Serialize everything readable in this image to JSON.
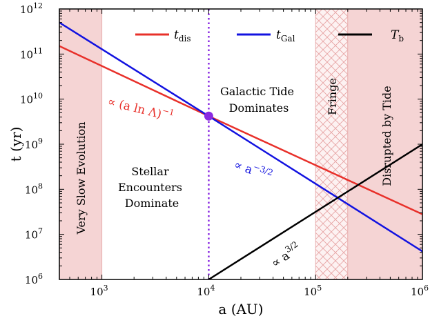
{
  "chart_data": {
    "type": "line",
    "title": "",
    "xlabel": "a (AU)",
    "ylabel": "t (yr)",
    "x_scale": "log",
    "y_scale": "log",
    "xlim": [
      400,
      1000000
    ],
    "ylim": [
      1000000,
      1000000000000
    ],
    "grid": false,
    "legend_position": "top",
    "x_ticks": [
      {
        "base": "10",
        "exp": "3",
        "value": 1000
      },
      {
        "base": "10",
        "exp": "4",
        "value": 10000
      },
      {
        "base": "10",
        "exp": "5",
        "value": 100000
      },
      {
        "base": "10",
        "exp": "6",
        "value": 1000000
      }
    ],
    "y_ticks": [
      {
        "base": "10",
        "exp": "6",
        "value": 1000000
      },
      {
        "base": "10",
        "exp": "7",
        "value": 10000000
      },
      {
        "base": "10",
        "exp": "8",
        "value": 100000000
      },
      {
        "base": "10",
        "exp": "9",
        "value": 1000000000
      },
      {
        "base": "10",
        "exp": "10",
        "value": 10000000000
      },
      {
        "base": "10",
        "exp": "11",
        "value": 100000000000
      },
      {
        "base": "10",
        "exp": "12",
        "value": 1000000000000
      }
    ],
    "series": [
      {
        "name": "t_dis",
        "color": "#e8302a",
        "points": [
          [
            400,
            150000000000
          ],
          [
            10000,
            4200000000
          ],
          [
            1000000,
            28000000
          ]
        ]
      },
      {
        "name": "t_Gal",
        "color": "#1212e0",
        "points": [
          [
            400,
            500000000000
          ],
          [
            10000,
            4200000000
          ],
          [
            1000000,
            4200000
          ]
        ]
      },
      {
        "name": "T_b",
        "color": "#000000",
        "points": [
          [
            10000,
            1000000
          ],
          [
            1000000,
            1000000000
          ]
        ]
      }
    ],
    "legend": [
      {
        "symbol": "t",
        "sub": "dis",
        "color": "#e8302a"
      },
      {
        "symbol": "t",
        "sub": "Gal",
        "color": "#1212e0"
      },
      {
        "symbol": "T",
        "sub": "b",
        "color": "#000000"
      }
    ],
    "regions": [
      {
        "label": "Very Slow Evolution",
        "x_range": [
          400,
          1000
        ],
        "fill": "#f5d4d4"
      },
      {
        "label": "Fringe",
        "x_range": [
          100000,
          200000
        ],
        "fill": "hatch"
      },
      {
        "label": "Disrupted by Tide",
        "x_range": [
          200000,
          1000000
        ],
        "fill": "#f5d4d4"
      }
    ],
    "vertical_line": {
      "x": 10000,
      "color": "#8a2be2",
      "style": "dotted"
    },
    "crossing_point": {
      "x": 10000,
      "y": 4200000000,
      "color": "#8a2be2"
    },
    "region_texts": {
      "stellar": [
        "Stellar",
        "Encounters",
        "Dominate"
      ],
      "galactic": [
        "Galactic Tide",
        "Dominates"
      ]
    },
    "annotations": [
      {
        "id": "dis",
        "text": "∝ (a ln Λ)",
        "sup": "−1",
        "color": "#e8302a"
      },
      {
        "id": "gal",
        "text": "∝ a",
        "sup": "−3/2",
        "color": "#1212e0"
      },
      {
        "id": "tb",
        "text": "∝ a",
        "sup": "3/2",
        "color": "#000000"
      }
    ]
  }
}
